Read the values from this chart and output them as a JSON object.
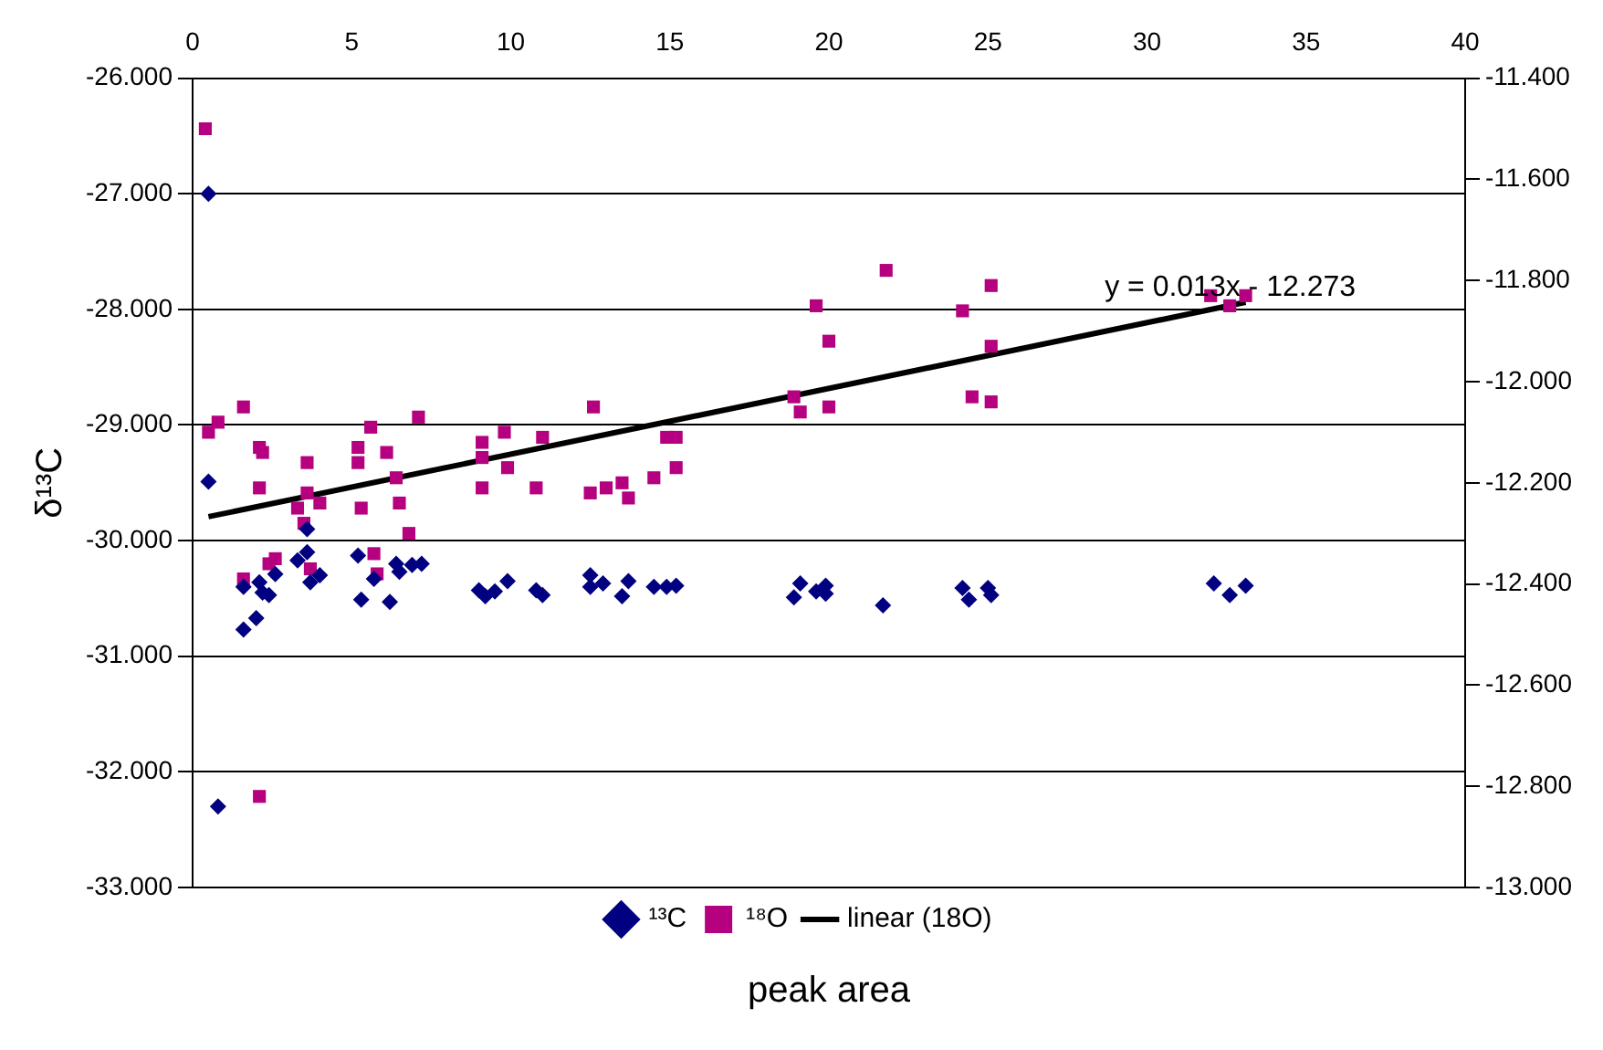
{
  "chart_data": {
    "type": "scatter",
    "xlabel": "peak area",
    "ylabel": "δ¹³C",
    "annotations": [
      "y = 0.013x - 12.273"
    ],
    "xlim": [
      0,
      40
    ],
    "xticks": [
      0,
      5,
      10,
      15,
      20,
      25,
      30,
      35,
      40
    ],
    "ylim": [
      -33,
      -26
    ],
    "yticks": [
      {
        "value": -33,
        "label": "-33.000"
      },
      {
        "value": -32,
        "label": "-32.000"
      },
      {
        "value": -31,
        "label": "-31.000"
      },
      {
        "value": -30,
        "label": "-30.000"
      },
      {
        "value": -29,
        "label": "-29.000"
      },
      {
        "value": -28,
        "label": "-28.000"
      },
      {
        "value": -27,
        "label": "-27.000"
      },
      {
        "value": -26,
        "label": "-26.000"
      }
    ],
    "y2lim": [
      -13,
      -11.4
    ],
    "y2ticks": [
      {
        "value": -13,
        "label": "-13.000"
      },
      {
        "value": -12.8,
        "label": "-12.800"
      },
      {
        "value": -12.6,
        "label": "-12.600"
      },
      {
        "value": -12.4,
        "label": "-12.400"
      },
      {
        "value": -12.2,
        "label": "-12.200"
      },
      {
        "value": -12,
        "label": "-12.000"
      },
      {
        "value": -11.8,
        "label": "-11.800"
      },
      {
        "value": -11.6,
        "label": "-11.600"
      },
      {
        "value": -11.4,
        "label": "-11.400"
      }
    ],
    "grid": "y",
    "legend": "bottom",
    "series": [
      {
        "name": "¹³C",
        "type": "scatter",
        "marker": "diamond",
        "color": "#000080",
        "x": [
          0.5,
          0.5,
          0.8,
          1.6,
          2.0,
          1.6,
          2.4,
          2.2,
          2.6,
          2.1,
          3.3,
          3.6,
          3.6,
          3.7,
          4.0,
          5.2,
          5.3,
          5.7,
          6.2,
          6.4,
          6.5,
          6.9,
          7.2,
          9.0,
          9.2,
          9.5,
          9.9,
          10.8,
          11.0,
          12.5,
          12.5,
          12.9,
          13.5,
          13.7,
          14.5,
          14.9,
          15.2,
          19.1,
          18.9,
          19.6,
          19.9,
          19.9,
          21.7,
          24.2,
          24.4,
          25.0,
          25.1,
          32.1,
          32.6,
          33.1
        ],
        "values": [
          -27.0,
          -29.49,
          -32.3,
          -30.77,
          -30.67,
          -30.4,
          -30.47,
          -30.45,
          -30.29,
          -30.36,
          -30.17,
          -30.1,
          -29.9,
          -30.36,
          -30.3,
          -30.13,
          -30.51,
          -30.33,
          -30.53,
          -30.2,
          -30.27,
          -30.21,
          -30.2,
          -30.43,
          -30.48,
          -30.44,
          -30.35,
          -30.43,
          -30.47,
          -30.3,
          -30.4,
          -30.37,
          -30.48,
          -30.35,
          -30.4,
          -30.4,
          -30.39,
          -30.37,
          -30.49,
          -30.44,
          -30.39,
          -30.46,
          -30.56,
          -30.41,
          -30.51,
          -30.41,
          -30.47,
          -30.37,
          -30.47,
          -30.39
        ]
      },
      {
        "name": "¹⁸O",
        "type": "scatter",
        "marker": "square",
        "axis": "y2",
        "color": "#b5007f",
        "x": [
          0.4,
          0.5,
          0.8,
          1.6,
          2.1,
          2.1,
          2.2,
          1.6,
          2.4,
          2.6,
          2.1,
          3.3,
          3.5,
          3.6,
          3.6,
          4.0,
          3.7,
          5.2,
          5.2,
          5.6,
          5.3,
          6.1,
          6.4,
          6.5,
          6.8,
          7.1,
          5.7,
          5.8,
          9.1,
          9.1,
          9.1,
          9.8,
          9.9,
          10.8,
          11.0,
          12.6,
          12.5,
          13.0,
          13.5,
          13.7,
          14.5,
          14.9,
          15.2,
          15.2,
          18.9,
          19.1,
          20.0,
          19.6,
          20.0,
          21.8,
          24.2,
          25.1,
          25.1,
          24.5,
          25.1,
          32.0,
          32.6,
          33.1
        ],
        "values": [
          -11.5,
          -12.1,
          -12.08,
          -12.05,
          -12.13,
          -12.21,
          -12.14,
          -12.39,
          -12.36,
          -12.35,
          -12.82,
          -12.25,
          -12.28,
          -12.16,
          -12.22,
          -12.24,
          -12.37,
          -12.13,
          -12.16,
          -12.09,
          -12.25,
          -12.14,
          -12.19,
          -12.24,
          -12.3,
          -12.07,
          -12.34,
          -12.38,
          -12.12,
          -12.15,
          -12.21,
          -12.1,
          -12.17,
          -12.21,
          -12.11,
          -12.05,
          -12.22,
          -12.21,
          -12.2,
          -12.23,
          -12.19,
          -12.11,
          -12.11,
          -12.17,
          -12.03,
          -12.06,
          -12.05,
          -11.85,
          -11.92,
          -11.78,
          -11.86,
          -11.81,
          -11.93,
          -12.03,
          -12.04,
          -11.83,
          -11.85,
          -11.83
        ]
      },
      {
        "name": "linear (18O)",
        "type": "line",
        "marker": "none",
        "axis": "y2",
        "color": "#000000",
        "x": [
          0.5,
          33.1
        ],
        "values": [
          -12.267,
          -11.843
        ]
      }
    ]
  }
}
